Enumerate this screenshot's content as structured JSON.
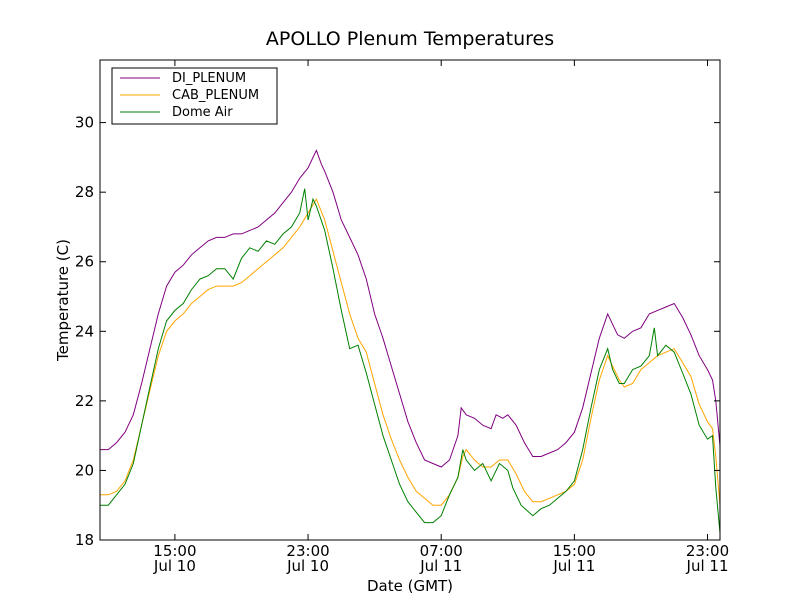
{
  "chart_data": {
    "type": "line",
    "title": "APOLLO Plenum Temperatures",
    "xlabel": "Date (GMT)",
    "ylabel": "Temperature (C)",
    "xlim": [
      10.5,
      47.75
    ],
    "ylim": [
      18,
      31.8
    ],
    "yticks": [
      18,
      20,
      22,
      24,
      26,
      28,
      30
    ],
    "xticks": [
      {
        "x": 15,
        "line1": "15:00",
        "line2": "Jul 10"
      },
      {
        "x": 23,
        "line1": "23:00",
        "line2": "Jul 10"
      },
      {
        "x": 31,
        "line1": "07:00",
        "line2": "Jul 11"
      },
      {
        "x": 39,
        "line1": "15:00",
        "line2": "Jul 11"
      },
      {
        "x": 47,
        "line1": "23:00",
        "line2": "Jul 11"
      }
    ],
    "legend_position": "top-left",
    "series": [
      {
        "name": "DI_PLENUM",
        "color": "#800080",
        "points": [
          [
            10.5,
            20.6
          ],
          [
            11.0,
            20.6
          ],
          [
            11.5,
            20.8
          ],
          [
            12.0,
            21.1
          ],
          [
            12.5,
            21.6
          ],
          [
            13.0,
            22.5
          ],
          [
            13.5,
            23.5
          ],
          [
            14.0,
            24.5
          ],
          [
            14.5,
            25.3
          ],
          [
            15.0,
            25.7
          ],
          [
            15.5,
            25.9
          ],
          [
            16.0,
            26.2
          ],
          [
            16.5,
            26.4
          ],
          [
            17.0,
            26.6
          ],
          [
            17.5,
            26.7
          ],
          [
            18.0,
            26.7
          ],
          [
            18.5,
            26.8
          ],
          [
            19.0,
            26.8
          ],
          [
            19.5,
            26.9
          ],
          [
            20.0,
            27.0
          ],
          [
            20.5,
            27.2
          ],
          [
            21.0,
            27.4
          ],
          [
            21.5,
            27.7
          ],
          [
            22.0,
            28.0
          ],
          [
            22.5,
            28.4
          ],
          [
            23.0,
            28.7
          ],
          [
            23.3,
            29.0
          ],
          [
            23.5,
            29.2
          ],
          [
            23.8,
            28.8
          ],
          [
            24.0,
            28.6
          ],
          [
            24.5,
            28.0
          ],
          [
            25.0,
            27.2
          ],
          [
            25.5,
            26.7
          ],
          [
            26.0,
            26.2
          ],
          [
            26.5,
            25.5
          ],
          [
            27.0,
            24.5
          ],
          [
            27.5,
            23.8
          ],
          [
            28.0,
            23.0
          ],
          [
            28.5,
            22.2
          ],
          [
            29.0,
            21.4
          ],
          [
            29.5,
            20.8
          ],
          [
            30.0,
            20.3
          ],
          [
            30.5,
            20.2
          ],
          [
            31.0,
            20.1
          ],
          [
            31.5,
            20.3
          ],
          [
            32.0,
            21.0
          ],
          [
            32.2,
            21.8
          ],
          [
            32.5,
            21.6
          ],
          [
            33.0,
            21.5
          ],
          [
            33.5,
            21.3
          ],
          [
            34.0,
            21.2
          ],
          [
            34.3,
            21.6
          ],
          [
            34.7,
            21.5
          ],
          [
            35.0,
            21.6
          ],
          [
            35.5,
            21.3
          ],
          [
            36.0,
            20.8
          ],
          [
            36.5,
            20.4
          ],
          [
            37.0,
            20.4
          ],
          [
            37.5,
            20.5
          ],
          [
            38.0,
            20.6
          ],
          [
            38.5,
            20.8
          ],
          [
            39.0,
            21.1
          ],
          [
            39.5,
            21.8
          ],
          [
            40.0,
            22.8
          ],
          [
            40.5,
            23.8
          ],
          [
            41.0,
            24.5
          ],
          [
            41.3,
            24.2
          ],
          [
            41.6,
            23.9
          ],
          [
            42.0,
            23.8
          ],
          [
            42.5,
            24.0
          ],
          [
            43.0,
            24.1
          ],
          [
            43.5,
            24.5
          ],
          [
            44.0,
            24.6
          ],
          [
            44.5,
            24.7
          ],
          [
            45.0,
            24.8
          ],
          [
            45.5,
            24.4
          ],
          [
            46.0,
            23.9
          ],
          [
            46.5,
            23.3
          ],
          [
            47.0,
            22.9
          ],
          [
            47.3,
            22.6
          ],
          [
            47.5,
            22.0
          ],
          [
            47.75,
            20.7
          ]
        ]
      },
      {
        "name": "CAB_PLENUM",
        "color": "#FFA500",
        "points": [
          [
            10.5,
            19.3
          ],
          [
            11.0,
            19.3
          ],
          [
            11.5,
            19.4
          ],
          [
            12.0,
            19.7
          ],
          [
            12.5,
            20.3
          ],
          [
            13.0,
            21.3
          ],
          [
            13.5,
            22.3
          ],
          [
            14.0,
            23.3
          ],
          [
            14.5,
            24.0
          ],
          [
            15.0,
            24.3
          ],
          [
            15.5,
            24.5
          ],
          [
            16.0,
            24.8
          ],
          [
            16.5,
            25.0
          ],
          [
            17.0,
            25.2
          ],
          [
            17.5,
            25.3
          ],
          [
            18.0,
            25.3
          ],
          [
            18.5,
            25.3
          ],
          [
            19.0,
            25.4
          ],
          [
            19.5,
            25.6
          ],
          [
            20.0,
            25.8
          ],
          [
            20.5,
            26.0
          ],
          [
            21.0,
            26.2
          ],
          [
            21.5,
            26.4
          ],
          [
            22.0,
            26.7
          ],
          [
            22.5,
            27.0
          ],
          [
            23.0,
            27.4
          ],
          [
            23.5,
            27.8
          ],
          [
            24.0,
            27.2
          ],
          [
            24.5,
            26.3
          ],
          [
            25.0,
            25.4
          ],
          [
            25.5,
            24.5
          ],
          [
            26.0,
            23.8
          ],
          [
            26.5,
            23.4
          ],
          [
            27.0,
            22.5
          ],
          [
            27.5,
            21.6
          ],
          [
            28.0,
            20.9
          ],
          [
            28.5,
            20.3
          ],
          [
            29.0,
            19.8
          ],
          [
            29.5,
            19.4
          ],
          [
            30.0,
            19.2
          ],
          [
            30.5,
            19.0
          ],
          [
            31.0,
            19.0
          ],
          [
            31.5,
            19.3
          ],
          [
            32.0,
            19.8
          ],
          [
            32.3,
            20.4
          ],
          [
            32.5,
            20.6
          ],
          [
            33.0,
            20.3
          ],
          [
            33.5,
            20.1
          ],
          [
            34.0,
            20.1
          ],
          [
            34.5,
            20.3
          ],
          [
            35.0,
            20.3
          ],
          [
            35.5,
            19.9
          ],
          [
            36.0,
            19.4
          ],
          [
            36.5,
            19.1
          ],
          [
            37.0,
            19.1
          ],
          [
            37.5,
            19.2
          ],
          [
            38.0,
            19.3
          ],
          [
            38.5,
            19.4
          ],
          [
            39.0,
            19.6
          ],
          [
            39.5,
            20.3
          ],
          [
            40.0,
            21.5
          ],
          [
            40.5,
            22.6
          ],
          [
            41.0,
            23.3
          ],
          [
            41.3,
            23.0
          ],
          [
            41.7,
            22.6
          ],
          [
            42.0,
            22.4
          ],
          [
            42.5,
            22.5
          ],
          [
            43.0,
            22.9
          ],
          [
            43.5,
            23.1
          ],
          [
            44.0,
            23.3
          ],
          [
            44.5,
            23.4
          ],
          [
            45.0,
            23.5
          ],
          [
            45.5,
            23.1
          ],
          [
            46.0,
            22.7
          ],
          [
            46.5,
            21.9
          ],
          [
            47.0,
            21.4
          ],
          [
            47.3,
            21.2
          ],
          [
            47.5,
            20.4
          ],
          [
            47.75,
            19.0
          ]
        ]
      },
      {
        "name": "Dome Air",
        "color": "#008000",
        "points": [
          [
            10.5,
            19.0
          ],
          [
            11.0,
            19.0
          ],
          [
            11.5,
            19.3
          ],
          [
            12.0,
            19.6
          ],
          [
            12.5,
            20.2
          ],
          [
            13.0,
            21.3
          ],
          [
            13.5,
            22.4
          ],
          [
            14.0,
            23.5
          ],
          [
            14.5,
            24.3
          ],
          [
            15.0,
            24.6
          ],
          [
            15.5,
            24.8
          ],
          [
            16.0,
            25.2
          ],
          [
            16.5,
            25.5
          ],
          [
            17.0,
            25.6
          ],
          [
            17.5,
            25.8
          ],
          [
            18.0,
            25.8
          ],
          [
            18.5,
            25.5
          ],
          [
            19.0,
            26.1
          ],
          [
            19.5,
            26.4
          ],
          [
            20.0,
            26.3
          ],
          [
            20.5,
            26.6
          ],
          [
            21.0,
            26.5
          ],
          [
            21.5,
            26.8
          ],
          [
            22.0,
            27.0
          ],
          [
            22.5,
            27.4
          ],
          [
            22.8,
            28.1
          ],
          [
            23.0,
            27.2
          ],
          [
            23.3,
            27.8
          ],
          [
            23.5,
            27.6
          ],
          [
            24.0,
            26.9
          ],
          [
            24.5,
            25.8
          ],
          [
            25.0,
            24.6
          ],
          [
            25.5,
            23.5
          ],
          [
            26.0,
            23.6
          ],
          [
            26.5,
            22.8
          ],
          [
            27.0,
            21.9
          ],
          [
            27.5,
            21.0
          ],
          [
            28.0,
            20.3
          ],
          [
            28.5,
            19.6
          ],
          [
            29.0,
            19.1
          ],
          [
            29.5,
            18.8
          ],
          [
            30.0,
            18.5
          ],
          [
            30.5,
            18.5
          ],
          [
            31.0,
            18.7
          ],
          [
            31.5,
            19.3
          ],
          [
            32.0,
            19.8
          ],
          [
            32.3,
            20.6
          ],
          [
            32.5,
            20.3
          ],
          [
            33.0,
            20.0
          ],
          [
            33.5,
            20.2
          ],
          [
            34.0,
            19.7
          ],
          [
            34.5,
            20.2
          ],
          [
            35.0,
            20.0
          ],
          [
            35.3,
            19.5
          ],
          [
            35.8,
            19.0
          ],
          [
            36.5,
            18.7
          ],
          [
            37.0,
            18.9
          ],
          [
            37.5,
            19.0
          ],
          [
            38.0,
            19.2
          ],
          [
            38.5,
            19.4
          ],
          [
            39.0,
            19.7
          ],
          [
            39.5,
            20.6
          ],
          [
            40.0,
            21.8
          ],
          [
            40.5,
            22.9
          ],
          [
            41.0,
            23.5
          ],
          [
            41.3,
            22.9
          ],
          [
            41.7,
            22.5
          ],
          [
            42.0,
            22.5
          ],
          [
            42.5,
            22.9
          ],
          [
            43.0,
            23.0
          ],
          [
            43.5,
            23.3
          ],
          [
            43.8,
            24.1
          ],
          [
            44.0,
            23.3
          ],
          [
            44.5,
            23.6
          ],
          [
            45.0,
            23.4
          ],
          [
            45.5,
            22.8
          ],
          [
            46.0,
            22.2
          ],
          [
            46.5,
            21.3
          ],
          [
            47.0,
            20.9
          ],
          [
            47.3,
            21.0
          ],
          [
            47.5,
            19.5
          ],
          [
            47.75,
            18.2
          ]
        ]
      }
    ]
  }
}
